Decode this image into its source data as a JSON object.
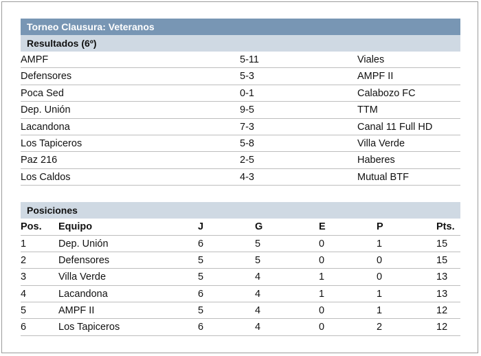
{
  "title": "Torneo Clausura: Veteranos",
  "results": {
    "heading": "Resultados (6º)",
    "rows": [
      {
        "home": "AMPF",
        "score": "5-11",
        "away": "Viales"
      },
      {
        "home": "Defensores",
        "score": "5-3",
        "away": "AMPF II"
      },
      {
        "home": "Poca Sed",
        "score": "0-1",
        "away": "Calabozo FC"
      },
      {
        "home": "Dep. Unión",
        "score": "9-5",
        "away": "TTM"
      },
      {
        "home": "Lacandona",
        "score": "7-3",
        "away": "Canal 11 Full HD"
      },
      {
        "home": "Los Tapiceros",
        "score": "5-8",
        "away": "Villa Verde"
      },
      {
        "home": "Paz 216",
        "score": "2-5",
        "away": "Haberes"
      },
      {
        "home": "Los Caldos",
        "score": "4-3",
        "away": "Mutual BTF"
      }
    ]
  },
  "standings": {
    "heading": "Posiciones",
    "columns": {
      "pos": "Pos.",
      "team": "Equipo",
      "j": "J",
      "g": "G",
      "e": "E",
      "p": "P",
      "pts": "Pts."
    },
    "rows": [
      {
        "pos": "1",
        "team": "Dep. Unión",
        "j": "6",
        "g": "5",
        "e": "0",
        "p": "1",
        "pts": "15"
      },
      {
        "pos": "2",
        "team": "Defensores",
        "j": "5",
        "g": "5",
        "e": "0",
        "p": "0",
        "pts": "15"
      },
      {
        "pos": "3",
        "team": "Villa Verde",
        "j": "5",
        "g": "4",
        "e": "1",
        "p": "0",
        "pts": "13"
      },
      {
        "pos": "4",
        "team": "Lacandona",
        "j": "6",
        "g": "4",
        "e": "1",
        "p": "1",
        "pts": "13"
      },
      {
        "pos": "5",
        "team": "AMPF II",
        "j": "5",
        "g": "4",
        "e": "0",
        "p": "1",
        "pts": "12"
      },
      {
        "pos": "6",
        "team": "Los Tapiceros",
        "j": "6",
        "g": "4",
        "e": "0",
        "p": "2",
        "pts": "12"
      }
    ]
  }
}
